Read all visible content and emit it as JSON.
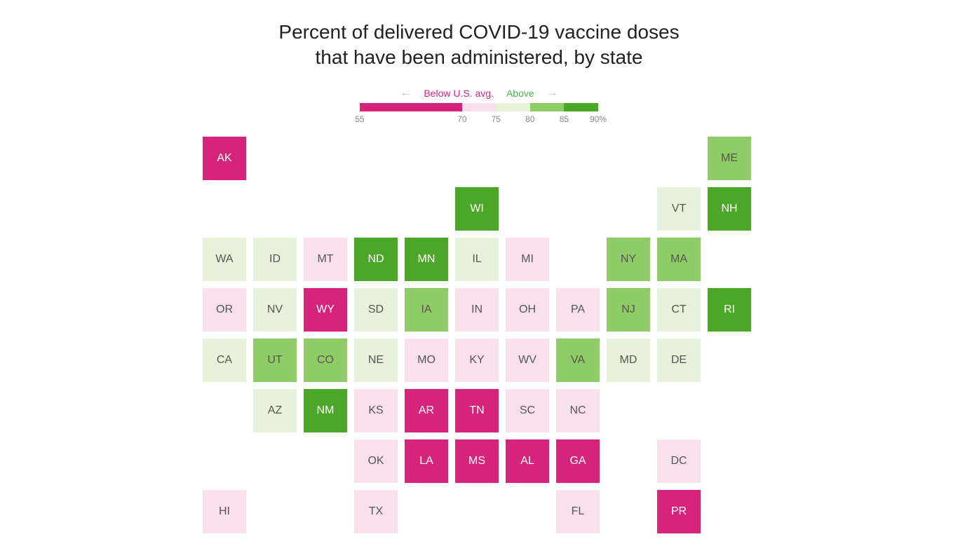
{
  "title_line1": "Percent of delivered COVID-19 vaccine doses",
  "title_line2": "that have been administered, by state",
  "legend": {
    "below_label": "Below U.S. avg.",
    "above_label": "Above",
    "ticks": [
      {
        "label": "55",
        "pos": 0
      },
      {
        "label": "70",
        "pos": 42.9
      },
      {
        "label": "75",
        "pos": 57.1
      },
      {
        "label": "80",
        "pos": 71.4
      },
      {
        "label": "85",
        "pos": 85.7
      },
      {
        "label": "90%",
        "pos": 100
      }
    ],
    "segments": [
      {
        "color": "#d6247d",
        "width": 42.9
      },
      {
        "color": "#fadfed",
        "width": 14.3
      },
      {
        "color": "#e6f2d9",
        "width": 14.3
      },
      {
        "color": "#8fcc65",
        "width": 14.3
      },
      {
        "color": "#4ca728",
        "width": 14.3
      }
    ]
  },
  "grid": {
    "cell_size": 72,
    "cell_inner": 66,
    "cols": 11,
    "rows": 8
  },
  "colors": {
    "c1": "#d6247d",
    "c2": "#fadfed",
    "c3": "#e6f2d9",
    "c4": "#8fcc65",
    "c5": "#4ca728",
    "text_dark": "#555",
    "text_light": "#ffffff"
  },
  "states": [
    {
      "abbr": "AK",
      "row": 0,
      "col": 0,
      "bucket": "c1"
    },
    {
      "abbr": "ME",
      "row": 0,
      "col": 10,
      "bucket": "c4"
    },
    {
      "abbr": "WI",
      "row": 1,
      "col": 5,
      "bucket": "c5"
    },
    {
      "abbr": "VT",
      "row": 1,
      "col": 9,
      "bucket": "c3"
    },
    {
      "abbr": "NH",
      "row": 1,
      "col": 10,
      "bucket": "c5"
    },
    {
      "abbr": "WA",
      "row": 2,
      "col": 0,
      "bucket": "c3"
    },
    {
      "abbr": "ID",
      "row": 2,
      "col": 1,
      "bucket": "c3"
    },
    {
      "abbr": "MT",
      "row": 2,
      "col": 2,
      "bucket": "c2"
    },
    {
      "abbr": "ND",
      "row": 2,
      "col": 3,
      "bucket": "c5"
    },
    {
      "abbr": "MN",
      "row": 2,
      "col": 4,
      "bucket": "c5"
    },
    {
      "abbr": "IL",
      "row": 2,
      "col": 5,
      "bucket": "c3"
    },
    {
      "abbr": "MI",
      "row": 2,
      "col": 6,
      "bucket": "c2"
    },
    {
      "abbr": "NY",
      "row": 2,
      "col": 8,
      "bucket": "c4"
    },
    {
      "abbr": "MA",
      "row": 2,
      "col": 9,
      "bucket": "c4"
    },
    {
      "abbr": "OR",
      "row": 3,
      "col": 0,
      "bucket": "c2"
    },
    {
      "abbr": "NV",
      "row": 3,
      "col": 1,
      "bucket": "c3"
    },
    {
      "abbr": "WY",
      "row": 3,
      "col": 2,
      "bucket": "c1"
    },
    {
      "abbr": "SD",
      "row": 3,
      "col": 3,
      "bucket": "c3"
    },
    {
      "abbr": "IA",
      "row": 3,
      "col": 4,
      "bucket": "c4"
    },
    {
      "abbr": "IN",
      "row": 3,
      "col": 5,
      "bucket": "c2"
    },
    {
      "abbr": "OH",
      "row": 3,
      "col": 6,
      "bucket": "c2"
    },
    {
      "abbr": "PA",
      "row": 3,
      "col": 7,
      "bucket": "c2"
    },
    {
      "abbr": "NJ",
      "row": 3,
      "col": 8,
      "bucket": "c4"
    },
    {
      "abbr": "CT",
      "row": 3,
      "col": 9,
      "bucket": "c3"
    },
    {
      "abbr": "RI",
      "row": 3,
      "col": 10,
      "bucket": "c5"
    },
    {
      "abbr": "CA",
      "row": 4,
      "col": 0,
      "bucket": "c3"
    },
    {
      "abbr": "UT",
      "row": 4,
      "col": 1,
      "bucket": "c4"
    },
    {
      "abbr": "CO",
      "row": 4,
      "col": 2,
      "bucket": "c4"
    },
    {
      "abbr": "NE",
      "row": 4,
      "col": 3,
      "bucket": "c3"
    },
    {
      "abbr": "MO",
      "row": 4,
      "col": 4,
      "bucket": "c2"
    },
    {
      "abbr": "KY",
      "row": 4,
      "col": 5,
      "bucket": "c2"
    },
    {
      "abbr": "WV",
      "row": 4,
      "col": 6,
      "bucket": "c2"
    },
    {
      "abbr": "VA",
      "row": 4,
      "col": 7,
      "bucket": "c4"
    },
    {
      "abbr": "MD",
      "row": 4,
      "col": 8,
      "bucket": "c3"
    },
    {
      "abbr": "DE",
      "row": 4,
      "col": 9,
      "bucket": "c3"
    },
    {
      "abbr": "AZ",
      "row": 5,
      "col": 1,
      "bucket": "c3"
    },
    {
      "abbr": "NM",
      "row": 5,
      "col": 2,
      "bucket": "c5"
    },
    {
      "abbr": "KS",
      "row": 5,
      "col": 3,
      "bucket": "c2"
    },
    {
      "abbr": "AR",
      "row": 5,
      "col": 4,
      "bucket": "c1"
    },
    {
      "abbr": "TN",
      "row": 5,
      "col": 5,
      "bucket": "c1"
    },
    {
      "abbr": "SC",
      "row": 5,
      "col": 6,
      "bucket": "c2"
    },
    {
      "abbr": "NC",
      "row": 5,
      "col": 7,
      "bucket": "c2"
    },
    {
      "abbr": "OK",
      "row": 6,
      "col": 3,
      "bucket": "c2"
    },
    {
      "abbr": "LA",
      "row": 6,
      "col": 4,
      "bucket": "c1"
    },
    {
      "abbr": "MS",
      "row": 6,
      "col": 5,
      "bucket": "c1"
    },
    {
      "abbr": "AL",
      "row": 6,
      "col": 6,
      "bucket": "c1"
    },
    {
      "abbr": "GA",
      "row": 6,
      "col": 7,
      "bucket": "c1"
    },
    {
      "abbr": "DC",
      "row": 6,
      "col": 9,
      "bucket": "c2"
    },
    {
      "abbr": "HI",
      "row": 7,
      "col": 0,
      "bucket": "c2"
    },
    {
      "abbr": "TX",
      "row": 7,
      "col": 3,
      "bucket": "c2"
    },
    {
      "abbr": "FL",
      "row": 7,
      "col": 7,
      "bucket": "c2"
    },
    {
      "abbr": "PR",
      "row": 7,
      "col": 9,
      "bucket": "c1"
    }
  ]
}
